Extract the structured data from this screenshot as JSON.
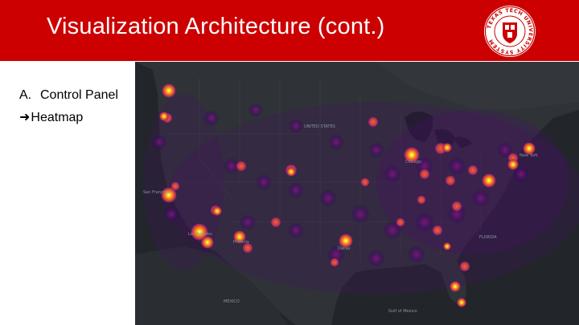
{
  "slide": {
    "title": "Visualization Architecture (cont.)",
    "accent_color": "#cc0000"
  },
  "seal": {
    "ring_text": "TEXAS TECH UNIVERSITY SYSTEM",
    "icon": "university-seal-icon"
  },
  "bullets": [
    {
      "marker": "A.",
      "text": "Control Panel"
    },
    {
      "marker": "➜",
      "text": "Heatmap"
    }
  ],
  "map": {
    "kind": "heatmap",
    "region": "United States",
    "colormap": [
      "#1b0c41",
      "#4a0c6b",
      "#781c6d",
      "#a52c60",
      "#cf4446",
      "#ed6925",
      "#fb9b06",
      "#f7d13d",
      "#fcffa4"
    ],
    "labels": {
      "united_states": "UNITED STATES",
      "gulf_of_mexico": "Gulf of Mexico",
      "san_francisco": "San Francisco",
      "los_angeles": "Los Angeles",
      "phoenix": "Phoenix",
      "dallas": "Dallas",
      "chicago": "Chicago",
      "new_york": "New York",
      "florida": "FLORIDA",
      "mexico": "MEXICO"
    }
  }
}
